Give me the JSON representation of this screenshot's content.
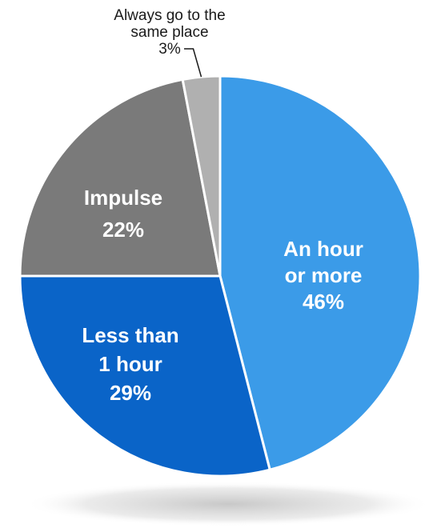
{
  "chart_data": {
    "type": "pie",
    "title": "",
    "slices": [
      {
        "label_lines": [
          "An hour",
          "or more"
        ],
        "value": 46,
        "value_label": "46%",
        "color": "#3b9be8"
      },
      {
        "label_lines": [
          "Less than",
          "1 hour"
        ],
        "value": 29,
        "value_label": "29%",
        "color": "#0a64c8"
      },
      {
        "label_lines": [
          "Impulse"
        ],
        "value": 22,
        "value_label": "22%",
        "color": "#7a7a7a"
      },
      {
        "label_lines": [
          "Always go to the",
          "same place"
        ],
        "value": 3,
        "value_label": "3%",
        "color": "#b0b0b0"
      }
    ],
    "start_angle": "12 o'clock",
    "direction": "clockwise",
    "slice_border_color": "#ffffff",
    "label_color": "#ffffff",
    "callout_slice": "Always go to the same place",
    "legend": "none",
    "shadow": true
  }
}
